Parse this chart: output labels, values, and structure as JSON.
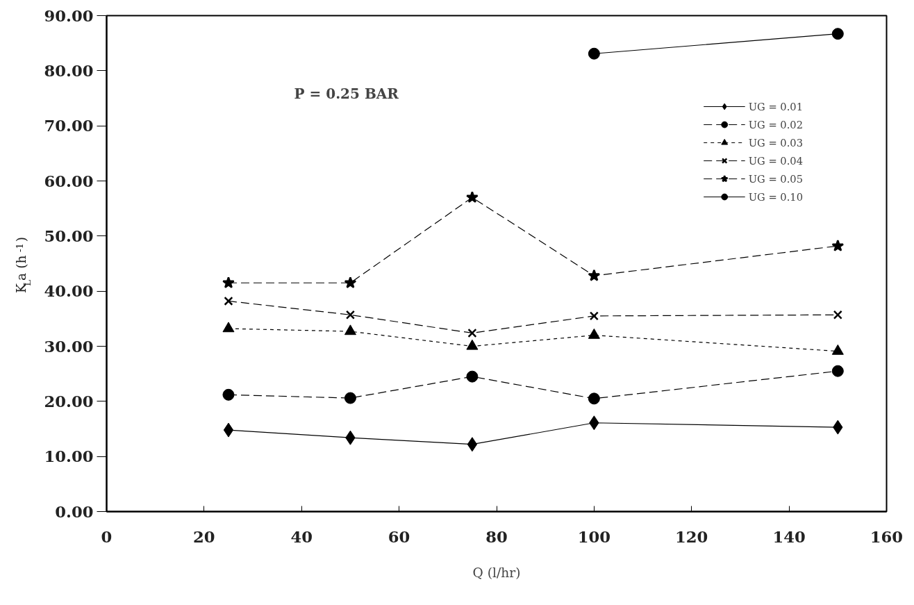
{
  "chart_data": {
    "type": "line",
    "xlabel": "Q (l/hr)",
    "ylabel": "K$_{L}$a (h$^{-1}$)",
    "annotations": [
      "P = 0.25 BAR"
    ],
    "xlim": [
      0,
      160
    ],
    "xticks": [
      0,
      20,
      40,
      60,
      80,
      100,
      120,
      140,
      160
    ],
    "ylim": [
      0,
      90
    ],
    "yticks": [
      {
        "value": 0,
        "label": "0.00"
      },
      {
        "value": 10,
        "label": "10.00"
      },
      {
        "value": 20,
        "label": "20.00"
      },
      {
        "value": 30,
        "label": "30.00"
      },
      {
        "value": 40,
        "label": "40.00"
      },
      {
        "value": 50,
        "label": "50.00"
      },
      {
        "value": 60,
        "label": "60.00"
      },
      {
        "value": 70,
        "label": "70.00"
      },
      {
        "value": 80,
        "label": "80.00"
      },
      {
        "value": 90,
        "label": "90.00"
      }
    ],
    "grid": false,
    "legend": "top right",
    "series": [
      {
        "name": "UG = 0.01",
        "color": "#000000",
        "marker": "diamond",
        "line_style": "solid",
        "x": [
          25,
          50,
          75,
          100,
          150
        ],
        "values": [
          14.8,
          13.4,
          12.2,
          16.1,
          15.3
        ]
      },
      {
        "name": "UG = 0.02",
        "color": "#000000",
        "marker": "circle",
        "line_style": "dashed",
        "x": [
          25,
          50,
          75,
          100,
          150
        ],
        "values": [
          21.2,
          20.6,
          24.5,
          20.5,
          25.5
        ]
      },
      {
        "name": "UG = 0.03",
        "color": "#000000",
        "marker": "triangle",
        "line_style": "dotted",
        "x": [
          25,
          50,
          75,
          100,
          150
        ],
        "values": [
          33.2,
          32.7,
          30.0,
          32.0,
          29.1
        ]
      },
      {
        "name": "UG = 0.04",
        "color": "#000000",
        "marker": "cross",
        "line_style": "dashed",
        "x": [
          25,
          50,
          75,
          100,
          150
        ],
        "values": [
          38.2,
          35.7,
          32.4,
          35.5,
          35.7
        ]
      },
      {
        "name": "UG = 0.05",
        "color": "#000000",
        "marker": "star",
        "line_style": "dashed",
        "x": [
          25,
          50,
          75,
          100,
          150
        ],
        "values": [
          41.5,
          41.5,
          57.0,
          42.8,
          48.2
        ]
      },
      {
        "name": "UG = 0.10",
        "color": "#000000",
        "marker": "circle",
        "line_style": "solid",
        "x": [
          100,
          150
        ],
        "values": [
          83.1,
          86.7
        ]
      }
    ]
  }
}
